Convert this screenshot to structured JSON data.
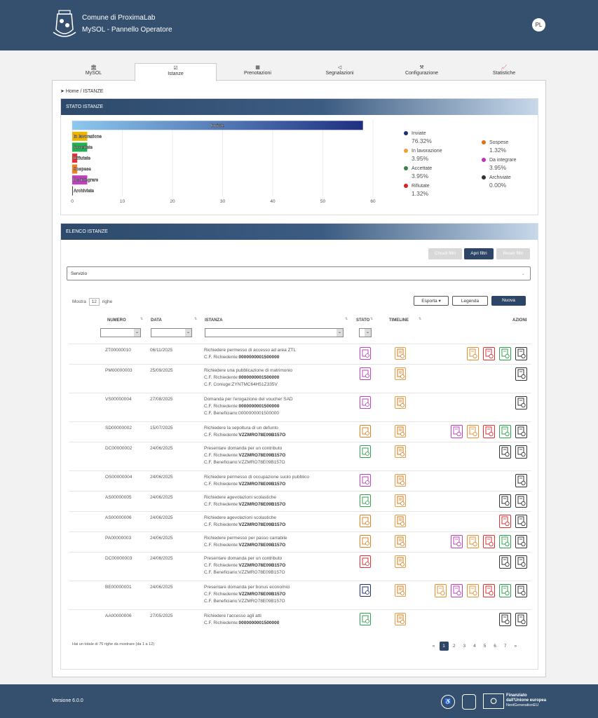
{
  "header": {
    "line1": "Comune di ProximaLab",
    "line2": "MySOL - Pannello Operatore",
    "avatar": "PL"
  },
  "tabs": [
    {
      "label": "MySOL",
      "icon": "bank-icon"
    },
    {
      "label": "Istanze",
      "icon": "checklist-icon",
      "active": true
    },
    {
      "label": "Prenotazioni",
      "icon": "calendar-icon"
    },
    {
      "label": "Segnalazioni",
      "icon": "megaphone-icon"
    },
    {
      "label": "Configurazione",
      "icon": "wrench-icon"
    },
    {
      "label": "Statistiche",
      "icon": "chart-icon"
    }
  ],
  "breadcrumb": {
    "home": "Home",
    "sep": "/",
    "current": "ISTANZE"
  },
  "stato": {
    "title": "STATO ISTANZE"
  },
  "chart_data": {
    "type": "bar",
    "orientation": "horizontal",
    "categories": [
      "Inviate",
      "In lavorazione",
      "Accettate",
      "Rifiutate",
      "Sospese",
      "Da integrare",
      "Archiviate"
    ],
    "values": [
      58,
      3,
      3,
      1,
      1,
      3,
      0
    ],
    "colors": [
      "#2b3f8f",
      "#f0b400",
      "#20b050",
      "#e83030",
      "#f08020",
      "#c040c0",
      "#444444"
    ],
    "xlim": [
      0,
      60
    ],
    "xticks": [
      0,
      10,
      20,
      30,
      40,
      50,
      60
    ],
    "grid": true
  },
  "legend": [
    {
      "label": "Inviate",
      "pct": "76.32%",
      "color": "#1d2f78"
    },
    {
      "label": "In lavorazione",
      "pct": "3.95%",
      "color": "#f0a030"
    },
    {
      "label": "Accettate",
      "pct": "3.95%",
      "color": "#3a8050"
    },
    {
      "label": "Rifiutate",
      "pct": "1.32%",
      "color": "#e02020"
    },
    {
      "label": "Sospese",
      "pct": "1.32%",
      "color": "#e07010"
    },
    {
      "label": "Da integrare",
      "pct": "3.95%",
      "color": "#c030c0"
    },
    {
      "label": "Archiviate",
      "pct": "0.00%",
      "color": "#333333"
    }
  ],
  "elenco": {
    "title": "ELENCO ISTANZE",
    "chiudi": "Chiudi filtri",
    "apri": "Apri filtri",
    "reset": "Reset filtri",
    "servizio": "Servizio",
    "mostra": "Mostra",
    "righe_val": "12",
    "righe": "righe",
    "esporta": "Esporta",
    "legenda": "Legenda",
    "nuova": "Nuova",
    "cols": {
      "numero": "NUMERO",
      "data": "DATA",
      "istanza": "ISTANZA",
      "stato": "STATO",
      "timeline": "TIMELINE",
      "azioni": "AZIONI"
    },
    "rows": [
      {
        "num": "ZT00000010",
        "data": "06/11/2025",
        "title": "Richiedere permesso di accesso ad area ZTL",
        "lines": [
          {
            "k": "C.F. Richiedente:",
            "v": "0000000001500000",
            "bold": true
          }
        ],
        "stato_color": "#c040c0",
        "actions": [
          "#e89030",
          "#e03030",
          "#30a050",
          "#333333"
        ]
      },
      {
        "num": "PM00000003",
        "data": "25/09/2025",
        "title": "Richiedere una pubblicazione di matrimonio",
        "lines": [
          {
            "k": "C.F. Richiedente:",
            "v": "0000000001500000",
            "bold": true
          },
          {
            "k": "C.F. Coniuge:",
            "v": "ZYNTMC64H51Z335V",
            "bold": false
          }
        ],
        "stato_color": "#c040c0",
        "actions": [
          "#333333"
        ]
      },
      {
        "num": "VS00000004",
        "data": "27/08/2025",
        "title": "Domanda per l'erogazione del voucher SAD",
        "lines": [
          {
            "k": "C.F. Richiedente:",
            "v": "0000000001500000",
            "bold": true
          },
          {
            "k": "C.F. Beneficiario:",
            "v": "0000000001500000",
            "bold": false
          }
        ],
        "stato_color": "#c040c0",
        "actions": [
          "#333333"
        ]
      },
      {
        "num": "SD00000002",
        "data": "15/07/2025",
        "title": "Richiedere la sepoltura di un defunto",
        "lines": [
          {
            "k": "C.F. Richiedente:",
            "v": "VZZMRO78E09B157O",
            "bold": true
          }
        ],
        "stato_color": "#e08020",
        "actions": [
          "#c040c0",
          "#e89030",
          "#e03030",
          "#30a050",
          "#333333"
        ]
      },
      {
        "num": "DC00000002",
        "data": "24/06/2025",
        "title": "Presentare domanda per un contributo",
        "lines": [
          {
            "k": "C.F. Richiedente:",
            "v": "VZZMRO78E09B157O",
            "bold": true
          },
          {
            "k": "C.F. Beneficiario:",
            "v": "VZZMRO78E09B157O",
            "bold": false
          }
        ],
        "stato_color": "#30a050",
        "actions": [
          "#333333",
          "#333333"
        ]
      },
      {
        "num": "OS00000004",
        "data": "24/06/2025",
        "title": "Richiedere permesso di occupazione suolo pubblico",
        "lines": [
          {
            "k": "C.F. Richiedente:",
            "v": "VZZMRO78E09B157O",
            "bold": true
          }
        ],
        "stato_color": "#c040c0",
        "actions": [
          "#333333"
        ]
      },
      {
        "num": "AS00000005",
        "data": "24/06/2025",
        "title": "Richiedere agevolazioni scolastiche",
        "lines": [
          {
            "k": "C.F. Richiedente:",
            "v": "VZZMRO78E09B157O",
            "bold": true
          }
        ],
        "stato_color": "#30a050",
        "actions": [
          "#333333",
          "#333333"
        ]
      },
      {
        "num": "AS00000006",
        "data": "24/06/2025",
        "title": "Richiedere agevolazioni scolastiche",
        "lines": [
          {
            "k": "C.F. Richiedente:",
            "v": "VZZMRO78E09B157O",
            "bold": true
          }
        ],
        "stato_color": "#e08020",
        "actions": [
          "#e03030",
          "#333333"
        ]
      },
      {
        "num": "PA00000003",
        "data": "24/06/2025",
        "title": "Richiedere permesso per passo carrabile",
        "lines": [
          {
            "k": "C.F. Richiedente:",
            "v": "VZZMRO78E09B157O",
            "bold": true
          }
        ],
        "stato_color": "#e08020",
        "actions": [
          "#c040c0",
          "#e89030",
          "#e03030",
          "#30a050",
          "#333333"
        ]
      },
      {
        "num": "DC00000003",
        "data": "24/06/2025",
        "title": "Presentare domanda per un contributo",
        "lines": [
          {
            "k": "C.F. Richiedente:",
            "v": "VZZMRO78E09B157O",
            "bold": true
          },
          {
            "k": "C.F. Beneficiario:",
            "v": "VZZMRO78E09B157O",
            "bold": false
          }
        ],
        "stato_color": "#e03030",
        "actions": [
          "#333333",
          "#333333"
        ]
      },
      {
        "num": "BE00000001",
        "data": "24/06/2025",
        "title": "Presentare domanda per bonus economici",
        "lines": [
          {
            "k": "C.F. Richiedente:",
            "v": "VZZMRO78E09B157O",
            "bold": true
          },
          {
            "k": "C.F. Beneficiario:",
            "v": "VZZMRO78E09B157O",
            "bold": false
          }
        ],
        "stato_color": "#1d2f78",
        "actions": [
          "#e89030",
          "#c040c0",
          "#e89030",
          "#e03030",
          "#30a050",
          "#333333"
        ]
      },
      {
        "num": "AA00000006",
        "data": "27/05/2025",
        "title": "Richiedere l'accesso agli atti",
        "lines": [
          {
            "k": "C.F. Richiedente:",
            "v": "0000000001500000",
            "bold": true
          }
        ],
        "stato_color": "#30a050",
        "actions": [
          "#333333",
          "#333333"
        ]
      }
    ],
    "footer_text": "Hai un totale di 75 righe da mostrare (da 1 a 12)",
    "pages": [
      "«",
      "1",
      "2",
      "3",
      "4",
      "5",
      "6",
      "7",
      "»"
    ]
  },
  "footer": {
    "version": "Versione 6.0.0",
    "eu1": "Finanziato",
    "eu2": "dall'Unione europea",
    "eu3": "NextGenerationEU"
  }
}
